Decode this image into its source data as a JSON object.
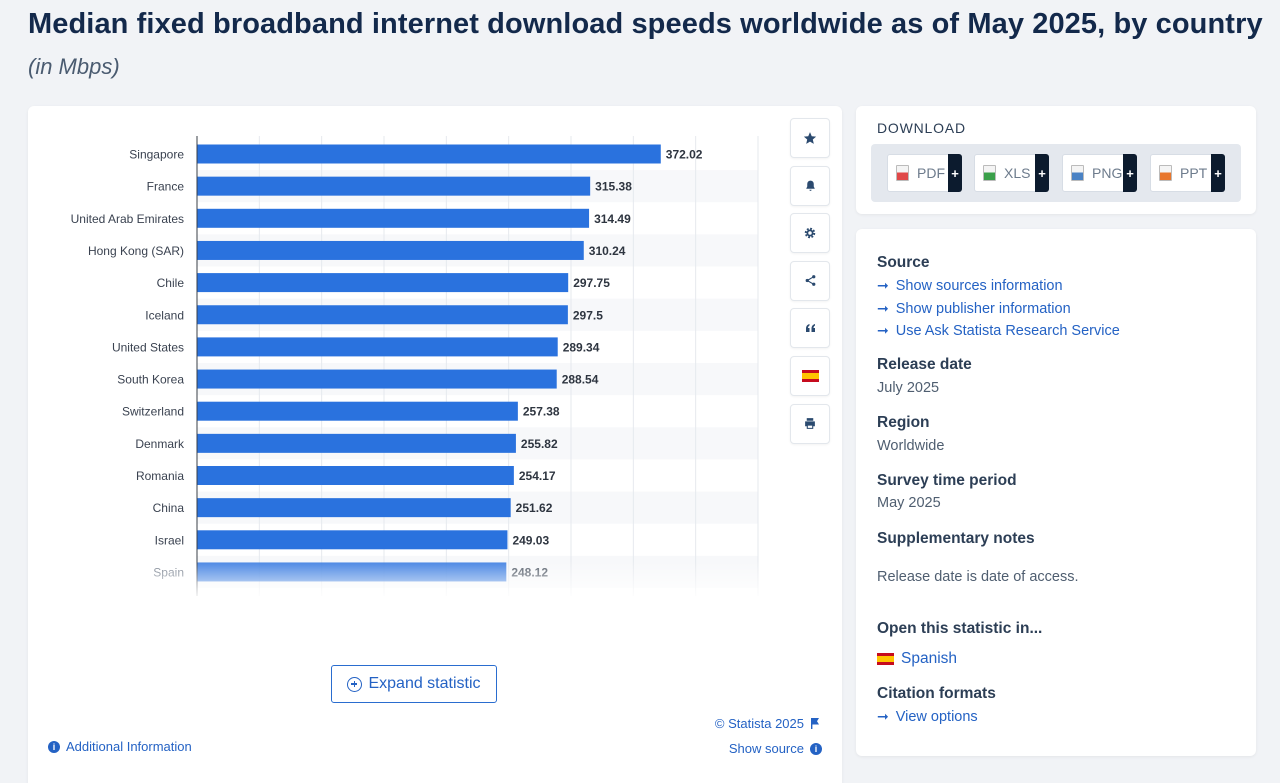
{
  "header": {
    "title": "Median fixed broadband internet download speeds worldwide as of May 2025, by country",
    "subtitle": "(in Mbps)"
  },
  "chart_data": {
    "type": "bar",
    "orientation": "horizontal",
    "title": "Median fixed broadband internet download speeds worldwide as of May 2025, by country",
    "unit": "Mbps",
    "categories": [
      "Singapore",
      "France",
      "United Arab Emirates",
      "Hong Kong (SAR)",
      "Chile",
      "Iceland",
      "United States",
      "South Korea",
      "Switzerland",
      "Denmark",
      "Romania",
      "China",
      "Israel",
      "Spain"
    ],
    "values": [
      372.02,
      315.38,
      314.49,
      310.24,
      297.75,
      297.5,
      289.34,
      288.54,
      257.38,
      255.82,
      254.17,
      251.62,
      249.03,
      248.12
    ],
    "value_labels": [
      "372.02",
      "315.38",
      "314.49",
      "310.24",
      "297.75",
      "297.5",
      "289.34",
      "288.54",
      "257.38",
      "255.82",
      "254.17",
      "251.62",
      "249.03",
      "248.12"
    ],
    "xlim": [
      0,
      450
    ],
    "bar_color": "#2a72de",
    "grid": true
  },
  "toolbar": {
    "icons": [
      "star-icon",
      "bell-icon",
      "gear-icon",
      "share-icon",
      "quote-icon",
      "spain-flag-icon",
      "print-icon"
    ]
  },
  "chart_footer": {
    "expand_label": "Expand statistic",
    "credit": "© Statista 2025",
    "show_source": "Show source",
    "additional_info": "Additional Information"
  },
  "download": {
    "title": "DOWNLOAD",
    "buttons": [
      {
        "label": "PDF",
        "color": "#e04848"
      },
      {
        "label": "XLS",
        "color": "#3aa04a"
      },
      {
        "label": "PNG",
        "color": "#4a82c4"
      },
      {
        "label": "PPT",
        "color": "#e8762c"
      }
    ],
    "plus": "+"
  },
  "info": {
    "source_heading": "Source",
    "source_links": [
      "Show sources information",
      "Show publisher information",
      "Use Ask Statista Research Service"
    ],
    "release_heading": "Release date",
    "release_value": "July 2025",
    "region_heading": "Region",
    "region_value": "Worldwide",
    "survey_heading": "Survey time period",
    "survey_value": "May 2025",
    "notes_heading": "Supplementary notes",
    "notes_value": "Release date is date of access.",
    "open_heading": "Open this statistic in...",
    "open_value": "Spanish",
    "citation_heading": "Citation formats",
    "citation_link": "View options"
  },
  "colors": {
    "accent": "#2462c4",
    "title": "#13294b"
  }
}
